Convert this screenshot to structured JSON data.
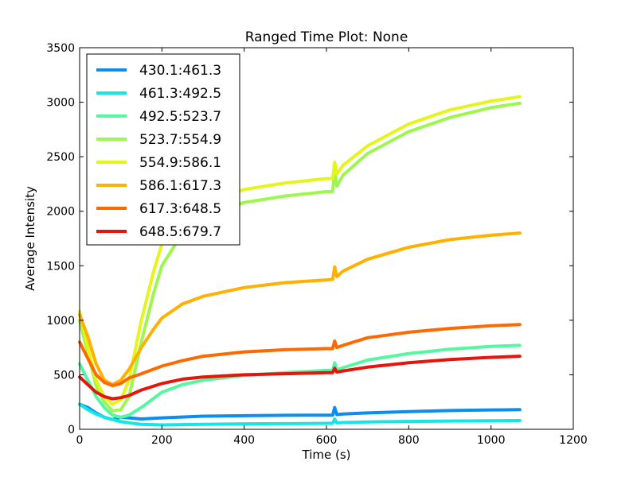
{
  "chart_data": {
    "type": "line",
    "title": "Ranged Time Plot: None",
    "xlabel": "Time (s)",
    "ylabel": "Average Intensity",
    "xlim": [
      0,
      1200
    ],
    "ylim": [
      0,
      3500
    ],
    "xticks": [
      0,
      200,
      400,
      600,
      800,
      1000,
      1200
    ],
    "yticks": [
      0,
      500,
      1000,
      1500,
      2000,
      2500,
      3000,
      3500
    ],
    "grid": false,
    "legend": "top-left",
    "series": [
      {
        "name": "430.1:461.3",
        "color": "#0a8ef0",
        "x": [
          0,
          20,
          40,
          60,
          80,
          100,
          120,
          150,
          200,
          300,
          400,
          500,
          600,
          615,
          620,
          625,
          640,
          700,
          800,
          900,
          1000,
          1070
        ],
        "y": [
          230,
          200,
          150,
          110,
          90,
          110,
          105,
          95,
          105,
          120,
          125,
          128,
          130,
          130,
          200,
          135,
          140,
          150,
          162,
          172,
          178,
          180
        ]
      },
      {
        "name": "461.3:492.5",
        "color": "#13e6e6",
        "x": [
          0,
          20,
          40,
          60,
          80,
          100,
          120,
          150,
          200,
          300,
          400,
          500,
          600,
          615,
          620,
          625,
          640,
          700,
          800,
          900,
          1000,
          1070
        ],
        "y": [
          230,
          180,
          140,
          110,
          90,
          70,
          60,
          45,
          40,
          45,
          50,
          52,
          55,
          55,
          95,
          58,
          62,
          68,
          72,
          76,
          78,
          80
        ]
      },
      {
        "name": "492.5:523.7",
        "color": "#55f8a0",
        "x": [
          0,
          20,
          40,
          60,
          80,
          100,
          120,
          150,
          200,
          250,
          300,
          400,
          500,
          600,
          615,
          620,
          625,
          640,
          700,
          800,
          900,
          1000,
          1070
        ],
        "y": [
          600,
          450,
          300,
          200,
          130,
          110,
          130,
          200,
          340,
          410,
          450,
          495,
          520,
          540,
          540,
          610,
          545,
          565,
          635,
          695,
          735,
          760,
          770
        ]
      },
      {
        "name": "523.7:554.9",
        "color": "#9cf74e",
        "x": [
          0,
          20,
          40,
          60,
          80,
          100,
          120,
          150,
          180,
          200,
          250,
          300,
          400,
          500,
          600,
          615,
          620,
          625,
          640,
          700,
          800,
          900,
          1000,
          1070
        ],
        "y": [
          1000,
          700,
          400,
          250,
          170,
          180,
          300,
          800,
          1250,
          1500,
          1800,
          1950,
          2080,
          2140,
          2180,
          2180,
          2390,
          2230,
          2330,
          2530,
          2730,
          2860,
          2950,
          2990
        ]
      },
      {
        "name": "554.9:586.1",
        "color": "#e4f51c",
        "x": [
          0,
          20,
          40,
          60,
          80,
          100,
          120,
          150,
          180,
          200,
          250,
          300,
          400,
          500,
          600,
          615,
          620,
          625,
          640,
          700,
          800,
          900,
          1000,
          1070
        ],
        "y": [
          1080,
          750,
          450,
          300,
          230,
          270,
          450,
          1000,
          1450,
          1700,
          1950,
          2080,
          2200,
          2260,
          2300,
          2300,
          2450,
          2340,
          2420,
          2600,
          2800,
          2930,
          3010,
          3050
        ]
      },
      {
        "name": "586.1:617.3",
        "color": "#ffb000",
        "x": [
          0,
          20,
          40,
          60,
          80,
          100,
          120,
          150,
          180,
          200,
          250,
          300,
          400,
          500,
          600,
          615,
          620,
          625,
          640,
          700,
          800,
          900,
          1000,
          1070
        ],
        "y": [
          1050,
          850,
          600,
          450,
          410,
          450,
          550,
          750,
          920,
          1020,
          1150,
          1220,
          1300,
          1345,
          1370,
          1375,
          1490,
          1400,
          1450,
          1560,
          1670,
          1740,
          1780,
          1800
        ]
      },
      {
        "name": "617.3:648.5",
        "color": "#ff6a00",
        "x": [
          0,
          20,
          40,
          60,
          80,
          100,
          120,
          150,
          200,
          250,
          300,
          400,
          500,
          600,
          615,
          620,
          625,
          640,
          700,
          800,
          900,
          1000,
          1070
        ],
        "y": [
          800,
          650,
          500,
          430,
          400,
          420,
          470,
          510,
          580,
          630,
          670,
          710,
          730,
          740,
          740,
          810,
          750,
          770,
          840,
          890,
          925,
          950,
          960
        ]
      },
      {
        "name": "648.5:679.7",
        "color": "#e8140c",
        "x": [
          0,
          20,
          40,
          60,
          80,
          100,
          120,
          150,
          200,
          250,
          300,
          400,
          500,
          600,
          615,
          620,
          625,
          640,
          700,
          800,
          900,
          1000,
          1070
        ],
        "y": [
          480,
          410,
          340,
          300,
          280,
          290,
          310,
          360,
          420,
          460,
          480,
          500,
          510,
          520,
          520,
          560,
          525,
          535,
          570,
          610,
          640,
          660,
          670
        ]
      }
    ]
  }
}
